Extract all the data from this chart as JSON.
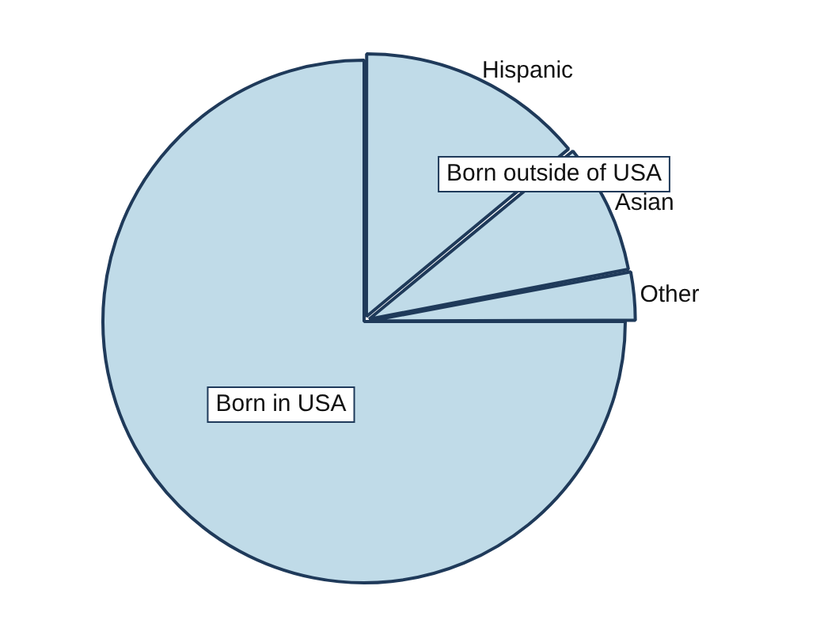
{
  "chart_data": {
    "type": "pie",
    "categories": [
      "Hispanic",
      "Asian",
      "Other",
      "Born in USA"
    ],
    "values": [
      14,
      8,
      3,
      75
    ],
    "colors": [
      "#c0dbe8",
      "#c0dbe8",
      "#c0dbe8",
      "#c0dbe8"
    ],
    "annotations": [
      "Born outside of USA"
    ],
    "legend": false
  }
}
